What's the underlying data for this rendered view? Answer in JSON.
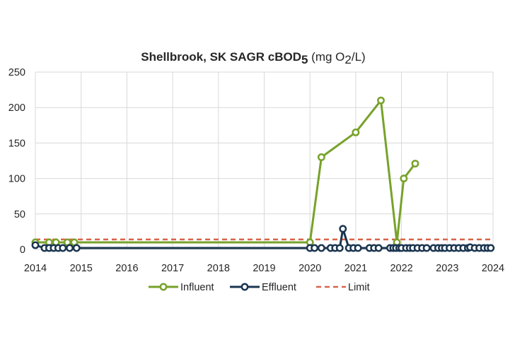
{
  "chart_data": {
    "type": "line",
    "title": {
      "main": "Shellbrook, SK SAGR cBOD",
      "sub5": "5",
      "unit_open": " (mg O",
      "sub2": "2",
      "unit_close": "/L)"
    },
    "xlabel": "",
    "ylabel": "",
    "xlim": [
      2014,
      2024
    ],
    "ylim": [
      0,
      250
    ],
    "x_ticks": [
      "2014",
      "2015",
      "2016",
      "2017",
      "2018",
      "2019",
      "2020",
      "2021",
      "2022",
      "2023",
      "2024"
    ],
    "y_ticks": [
      "0",
      "50",
      "100",
      "150",
      "200",
      "250"
    ],
    "grid": true,
    "legend_position": "bottom",
    "series": [
      {
        "name": "Influent",
        "color": "#77a22a",
        "marker": "open-circle",
        "points": [
          [
            2014.0,
            10
          ],
          [
            2014.3,
            10
          ],
          [
            2014.45,
            10
          ],
          [
            2014.7,
            10
          ],
          [
            2014.85,
            10
          ],
          [
            2020.0,
            10
          ],
          [
            2020.25,
            130
          ],
          [
            2021.0,
            165
          ],
          [
            2021.55,
            210
          ],
          [
            2021.9,
            10
          ],
          [
            2022.05,
            100
          ],
          [
            2022.3,
            121
          ]
        ]
      },
      {
        "name": "Effluent",
        "color": "#1b3550",
        "marker": "open-circle",
        "points": [
          [
            2014.0,
            6
          ],
          [
            2014.2,
            2
          ],
          [
            2014.3,
            2
          ],
          [
            2014.4,
            2
          ],
          [
            2014.5,
            2
          ],
          [
            2014.6,
            2
          ],
          [
            2014.75,
            2
          ],
          [
            2014.9,
            2
          ],
          [
            2020.0,
            2
          ],
          [
            2020.1,
            2
          ],
          [
            2020.25,
            2
          ],
          [
            2020.45,
            2
          ],
          [
            2020.55,
            2
          ],
          [
            2020.65,
            2
          ],
          [
            2020.72,
            29
          ],
          [
            2020.85,
            2
          ],
          [
            2020.95,
            2
          ],
          [
            2021.05,
            2
          ],
          [
            2021.3,
            2
          ],
          [
            2021.4,
            2
          ],
          [
            2021.5,
            2
          ],
          [
            2021.75,
            2
          ],
          [
            2021.82,
            2
          ],
          [
            2021.88,
            2
          ],
          [
            2021.95,
            2
          ],
          [
            2022.0,
            2
          ],
          [
            2022.1,
            2
          ],
          [
            2022.18,
            2
          ],
          [
            2022.25,
            2
          ],
          [
            2022.35,
            2
          ],
          [
            2022.45,
            2
          ],
          [
            2022.55,
            2
          ],
          [
            2022.7,
            2
          ],
          [
            2022.8,
            2
          ],
          [
            2022.88,
            2
          ],
          [
            2022.95,
            2
          ],
          [
            2023.05,
            2
          ],
          [
            2023.15,
            2
          ],
          [
            2023.25,
            2
          ],
          [
            2023.35,
            2
          ],
          [
            2023.45,
            2
          ],
          [
            2023.5,
            3
          ],
          [
            2023.6,
            2
          ],
          [
            2023.7,
            2
          ],
          [
            2023.8,
            2
          ],
          [
            2023.88,
            2
          ],
          [
            2023.95,
            2
          ]
        ]
      },
      {
        "name": "Limit",
        "color": "#d9634a",
        "style": "dashed",
        "points": [
          [
            2014.0,
            14
          ],
          [
            2024.0,
            14
          ]
        ]
      }
    ]
  }
}
